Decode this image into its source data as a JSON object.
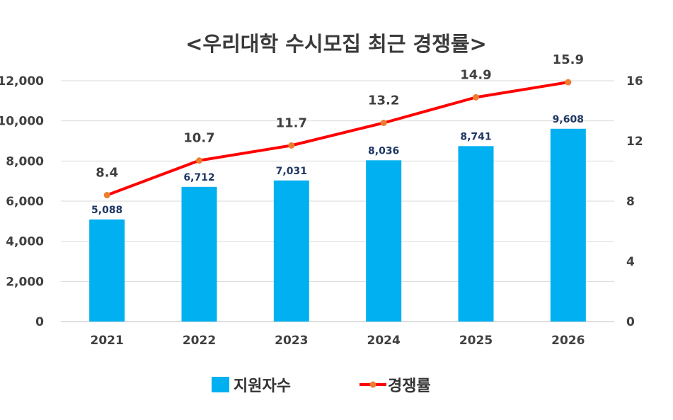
{
  "chart_data": {
    "type": "bar",
    "title": "<우리대학 수시모집 최근 경쟁률>",
    "categories": [
      "2021",
      "2022",
      "2023",
      "2024",
      "2025",
      "2026"
    ],
    "series": [
      {
        "name": "지원자수",
        "type": "bar",
        "axis": "left",
        "values": [
          5088,
          6712,
          7031,
          8036,
          8741,
          9608
        ],
        "labels": [
          "5,088",
          "6,712",
          "7,031",
          "8,036",
          "8,741",
          "9,608"
        ],
        "color": "#00b0f0"
      },
      {
        "name": "경쟁률",
        "type": "line",
        "axis": "right",
        "values": [
          8.4,
          10.7,
          11.7,
          13.2,
          14.9,
          15.9
        ],
        "labels": [
          "8.4",
          "10.7",
          "11.7",
          "13.2",
          "14.9",
          "15.9"
        ],
        "color": "#ff0000",
        "marker_color": "#ed7d31"
      }
    ],
    "y_left": {
      "lim": [
        0,
        12000
      ],
      "ticks": [
        "0",
        "2,000",
        "4,000",
        "6,000",
        "8,000",
        "10,000",
        "12,000"
      ]
    },
    "y_right": {
      "lim": [
        0,
        16
      ],
      "ticks": [
        "0",
        "4",
        "8",
        "12",
        "16"
      ]
    },
    "xlabel": "",
    "ylabel": "",
    "grid": true,
    "legend": "bottom",
    "colors": {
      "grid": "#d9d9d9",
      "text": "#404040",
      "bar_label": "#1f3864"
    }
  }
}
